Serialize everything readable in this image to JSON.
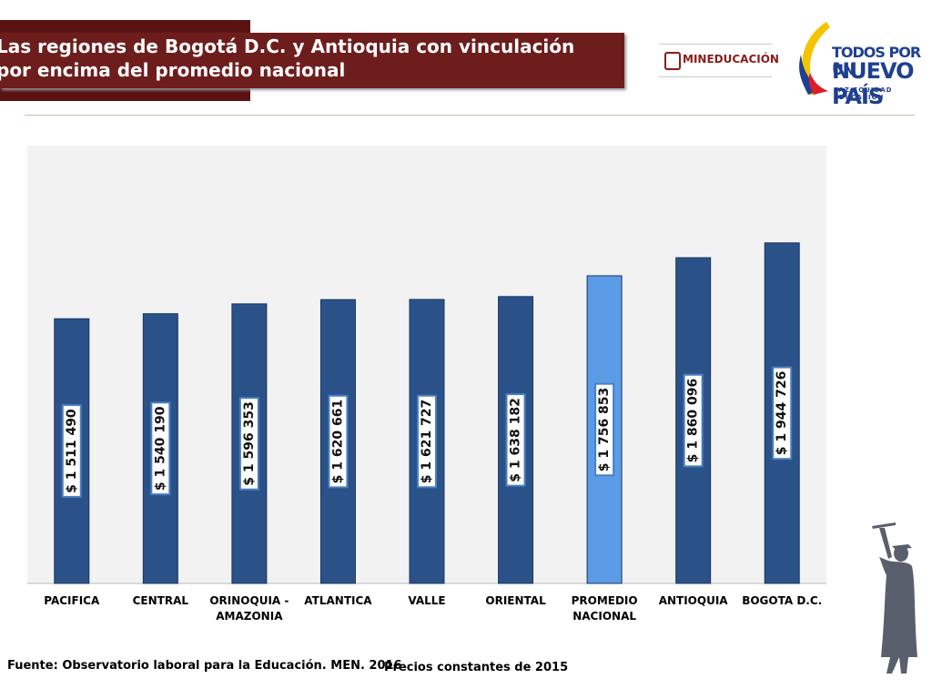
{
  "chart_data": {
    "type": "bar",
    "title": "Las regiones de Bogotá D.C. y Antioquia con vinculación  por encima del promedio nacional",
    "categories": [
      "PACIFICA",
      "CENTRAL",
      "ORINOQUIA - AMAZONIA",
      "ATLANTICA",
      "VALLE",
      "ORIENTAL",
      "PROMEDIO NACIONAL",
      "ANTIOQUIA",
      "BOGOTA D.C."
    ],
    "values": [
      1511490,
      1540190,
      1596353,
      1620661,
      1621727,
      1638182,
      1756853,
      1860096,
      1944726
    ],
    "value_labels": [
      "$ 1 511 490",
      "$ 1 540 190",
      "$ 1 596 353",
      "$ 1 620 661",
      "$ 1 621 727",
      "$ 1 638 182",
      "$ 1 756 853",
      "$ 1 860 096",
      "$ 1 944 726"
    ],
    "colors": [
      "#2a5289",
      "#2a5289",
      "#2a5289",
      "#2a5289",
      "#2a5289",
      "#2a5289",
      "#5b9be6",
      "#2a5289",
      "#2a5289"
    ],
    "ylim": [
      0,
      2500000
    ],
    "source": "Fuente: Observatorio laboral para la Educación. MEN. 2016",
    "note": "Precios constantes  de 2015"
  },
  "logos": {
    "ministry": "MINEDUCACIÓN",
    "slogan_top": "TODOS POR UN",
    "slogan_main": "NUEVO PAÍS",
    "slogan_sub": "PAZ  EQUIDAD  EDUCACIÓN"
  }
}
